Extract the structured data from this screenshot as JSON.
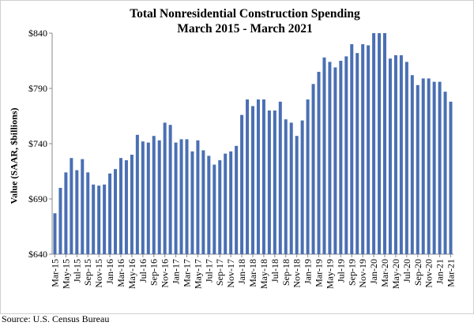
{
  "chart_data": {
    "type": "bar",
    "title": [
      "Total Nonresidential Construction Spending",
      "March 2015 - March 2021"
    ],
    "ylabel": "Value (SAAR, $billions)",
    "xlabel": "",
    "ylim": [
      640,
      840
    ],
    "yticks": [
      640,
      690,
      740,
      790,
      840
    ],
    "ytick_labels": [
      "$640",
      "$690",
      "$740",
      "$790",
      "$840"
    ],
    "grid": false,
    "bar_color": "#4a6fb3",
    "categories": [
      "Mar-15",
      "Apr-15",
      "May-15",
      "Jun-15",
      "Jul-15",
      "Aug-15",
      "Sep-15",
      "Oct-15",
      "Nov-15",
      "Dec-15",
      "Jan-16",
      "Feb-16",
      "Mar-16",
      "Apr-16",
      "May-16",
      "Jun-16",
      "Jul-16",
      "Aug-16",
      "Sep-16",
      "Oct-16",
      "Nov-16",
      "Dec-16",
      "Jan-17",
      "Feb-17",
      "Mar-17",
      "Apr-17",
      "May-17",
      "Jun-17",
      "Jul-17",
      "Aug-17",
      "Sep-17",
      "Oct-17",
      "Nov-17",
      "Dec-17",
      "Jan-18",
      "Feb-18",
      "Mar-18",
      "Apr-18",
      "May-18",
      "Jun-18",
      "Jul-18",
      "Aug-18",
      "Sep-18",
      "Oct-18",
      "Nov-18",
      "Dec-18",
      "Jan-19",
      "Feb-19",
      "Mar-19",
      "Apr-19",
      "May-19",
      "Jun-19",
      "Jul-19",
      "Aug-19",
      "Sep-19",
      "Oct-19",
      "Nov-19",
      "Dec-19",
      "Jan-20",
      "Feb-20",
      "Mar-20",
      "Apr-20",
      "May-20",
      "Jun-20",
      "Jul-20",
      "Aug-20",
      "Sep-20",
      "Oct-20",
      "Nov-20",
      "Dec-20",
      "Jan-21",
      "Feb-21",
      "Mar-21"
    ],
    "values": [
      677,
      700,
      714,
      727,
      716,
      726,
      714,
      703,
      702,
      703,
      713,
      717,
      727,
      725,
      730,
      748,
      742,
      741,
      747,
      743,
      759,
      757,
      741,
      744,
      744,
      733,
      743,
      734,
      729,
      721,
      725,
      731,
      733,
      738,
      766,
      780,
      774,
      780,
      780,
      770,
      770,
      778,
      762,
      759,
      747,
      761,
      780,
      794,
      805,
      818,
      814,
      809,
      815,
      819,
      830,
      822,
      830,
      829,
      840,
      840,
      840,
      817,
      820,
      820,
      814,
      802,
      793,
      799,
      799,
      796,
      796,
      787,
      778
    ],
    "xtick_every": 2
  },
  "source": "Source:  U.S. Census Bureau"
}
